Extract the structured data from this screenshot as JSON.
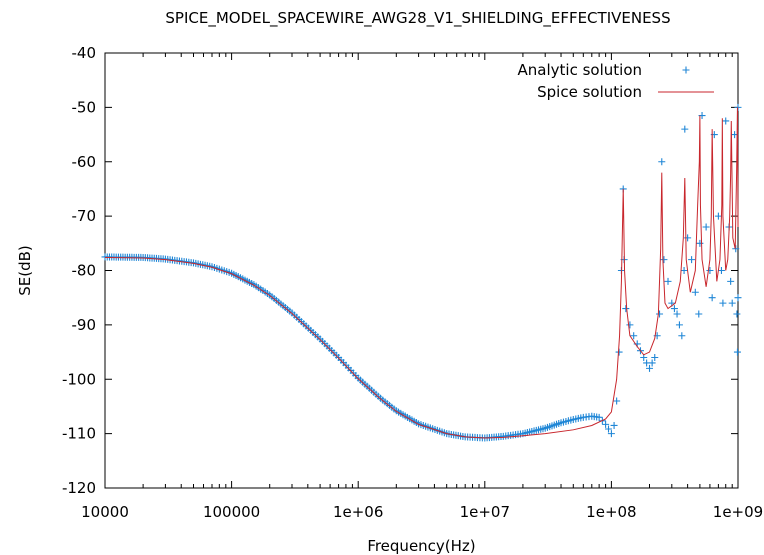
{
  "chart_data": {
    "type": "line",
    "title": "SPICE_MODEL_SPACEWIRE_AWG28_V1_SHIELDING_EFFECTIVENESS",
    "xlabel": "Frequency(Hz)",
    "ylabel": "SE(dB)",
    "x_scale": "log",
    "xlim": [
      10000,
      1000000000
    ],
    "ylim": [
      -120,
      -40
    ],
    "x_ticks": [
      10000,
      100000,
      1000000,
      10000000,
      100000000,
      1000000000
    ],
    "x_tick_labels": [
      "10000",
      "100000",
      "1e+06",
      "1e+07",
      "1e+08",
      "1e+09"
    ],
    "y_ticks": [
      -120,
      -110,
      -100,
      -90,
      -80,
      -70,
      -60,
      -50,
      -40
    ],
    "y_tick_labels": [
      "-120",
      "-110",
      "-100",
      "-90",
      "-80",
      "-70",
      "-60",
      "-50",
      "-40"
    ],
    "grid": false,
    "legend_position": "top-right",
    "series": [
      {
        "name": "Analytic solution",
        "style": "points",
        "marker": "+",
        "color": "#1f86d6",
        "x": [
          10000,
          20000,
          30000,
          50000,
          70000,
          100000,
          150000,
          200000,
          300000,
          500000,
          700000,
          1000000,
          1500000,
          2000000,
          3000000,
          5000000,
          7000000,
          10000000,
          14000000,
          20000000,
          30000000,
          40000000,
          50000000,
          60000000,
          70000000,
          80000000,
          90000000,
          100000000,
          105000000,
          110000000,
          115000000,
          120000000,
          124000000,
          126000000,
          130000000,
          140000000,
          150000000,
          160000000,
          180000000,
          200000000,
          220000000,
          240000000,
          250000000,
          260000000,
          280000000,
          300000000,
          330000000,
          360000000,
          375000000,
          380000000,
          400000000,
          430000000,
          460000000,
          490000000,
          500000000,
          520000000,
          560000000,
          600000000,
          625000000,
          650000000,
          700000000,
          740000000,
          760000000,
          800000000,
          850000000,
          875000000,
          900000000,
          940000000,
          960000000,
          980000000,
          990000000,
          1000000000,
          1000000000
        ],
        "y": [
          -77.5,
          -77.6,
          -77.9,
          -78.6,
          -79.3,
          -80.5,
          -82.6,
          -84.5,
          -87.8,
          -92.6,
          -96,
          -99.8,
          -103.5,
          -105.8,
          -108.2,
          -110,
          -110.6,
          -110.8,
          -110.5,
          -110,
          -109,
          -108,
          -107.4,
          -107,
          -106.8,
          -107,
          -108.3,
          -110,
          -108.5,
          -104,
          -95,
          -80,
          -65,
          -78,
          -87,
          -90,
          -92,
          -93.5,
          -96,
          -98,
          -96,
          -88,
          -60,
          -78,
          -82,
          -86,
          -88,
          -92,
          -80,
          -54,
          -74,
          -78,
          -84,
          -88,
          -75,
          -51.5,
          -72,
          -80,
          -85,
          -55,
          -70,
          -80,
          -86,
          -52.5,
          -72,
          -82,
          -86,
          -55,
          -76,
          -88,
          -95,
          -50,
          -85
        ]
      },
      {
        "name": "Spice solution",
        "style": "line",
        "color": "#c8262c",
        "x": [
          10000,
          20000,
          30000,
          50000,
          70000,
          100000,
          150000,
          200000,
          300000,
          500000,
          700000,
          1000000,
          1500000,
          2000000,
          3000000,
          5000000,
          7000000,
          10000000,
          14000000,
          20000000,
          30000000,
          50000000,
          70000000,
          90000000,
          100000000,
          110000000,
          116000000,
          120000000,
          124000000,
          127000000,
          132000000,
          140000000,
          160000000,
          180000000,
          200000000,
          220000000,
          235000000,
          245000000,
          250000000,
          255000000,
          265000000,
          280000000,
          320000000,
          350000000,
          370000000,
          380000000,
          390000000,
          420000000,
          460000000,
          480000000,
          495000000,
          500000000,
          505000000,
          520000000,
          560000000,
          600000000,
          615000000,
          625000000,
          640000000,
          680000000,
          720000000,
          745000000,
          752000000,
          760000000,
          800000000,
          830000000,
          860000000,
          875000000,
          885000000,
          910000000,
          950000000,
          975000000,
          990000000,
          1000000000
        ],
        "y": [
          -77.6,
          -77.7,
          -78,
          -78.7,
          -79.4,
          -80.6,
          -82.7,
          -84.6,
          -87.9,
          -92.7,
          -96.1,
          -99.9,
          -103.6,
          -105.9,
          -108.3,
          -110,
          -110.6,
          -110.8,
          -110.7,
          -110.4,
          -110,
          -109.3,
          -108.5,
          -107.3,
          -106,
          -100,
          -92,
          -82,
          -65,
          -80,
          -87,
          -92,
          -94,
          -95.5,
          -95,
          -92.5,
          -88,
          -76,
          -62,
          -78,
          -86,
          -87,
          -86,
          -82,
          -74,
          -63,
          -78,
          -84,
          -80,
          -68,
          -60,
          -51.5,
          -68,
          -78,
          -83,
          -78,
          -70,
          -54,
          -70,
          -82,
          -78,
          -68,
          -52,
          -70,
          -80,
          -78,
          -70,
          -62,
          -52.5,
          -74,
          -76,
          -62,
          -50,
          -72
        ]
      }
    ]
  }
}
